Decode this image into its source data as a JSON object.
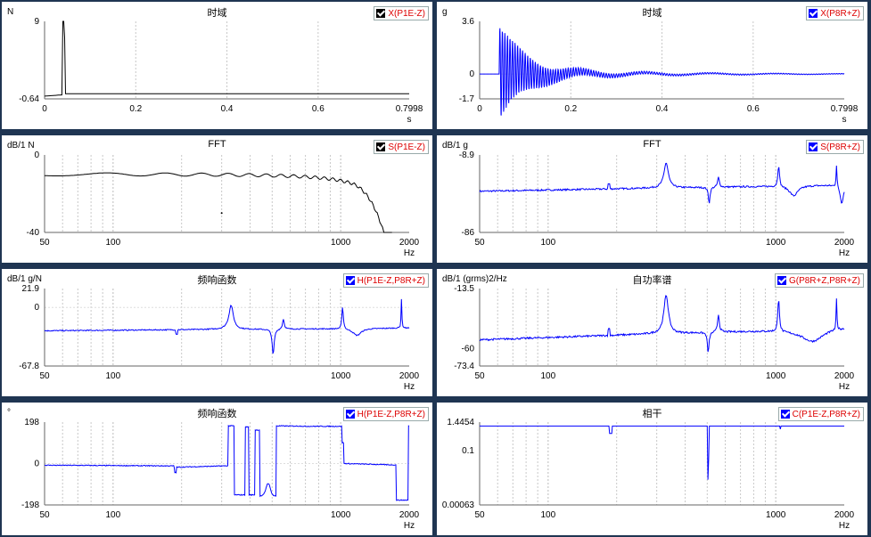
{
  "panels": [
    {
      "id": "p1",
      "title": "时域",
      "unit": "N",
      "legend": "X(P1E-Z)",
      "legend_color": "#000000",
      "color": "#000000",
      "xscale": "lin",
      "xmin": 0,
      "xmax": 0.7998,
      "xticks": [
        "0",
        "0.2",
        "0.4",
        "0.6",
        "0.7998"
      ],
      "xunit": "s",
      "yticks": [
        "9",
        "-0.64"
      ],
      "ymin": -0.64,
      "ymax": 9,
      "trace": "impulse"
    },
    {
      "id": "p2",
      "title": "时域",
      "unit": "g",
      "legend": "X(P8R+Z)",
      "legend_color": "#0000ff",
      "color": "#0000ff",
      "xscale": "lin",
      "xmin": 0,
      "xmax": 0.7998,
      "xticks": [
        "0",
        "0.2",
        "0.4",
        "0.6",
        "0.7998"
      ],
      "xunit": "s",
      "yticks": [
        "3.6",
        "0",
        "-1.7"
      ],
      "ymin": -1.7,
      "ymax": 3.6,
      "trace": "decay"
    },
    {
      "id": "p3",
      "title": "FFT",
      "unit": "dB/1 N",
      "legend": "S(P1E-Z)",
      "legend_color": "#000000",
      "color": "#000000",
      "xscale": "log",
      "xmin": 50,
      "xmax": 2000,
      "xticks": [
        "50",
        "100",
        "1000",
        "2000"
      ],
      "xunit": "Hz",
      "yticks": [
        "0",
        "-40"
      ],
      "ymin": -40,
      "ymax": 0,
      "trace": "fftforce"
    },
    {
      "id": "p4",
      "title": "FFT",
      "unit": "dB/1 g",
      "legend": "S(P8R+Z)",
      "legend_color": "#0000ff",
      "color": "#0000ff",
      "xscale": "log",
      "xmin": 50,
      "xmax": 2000,
      "xticks": [
        "50",
        "100",
        "1000",
        "2000"
      ],
      "xunit": "Hz",
      "yticks": [
        "-8.9",
        "-86"
      ],
      "ymin": -86,
      "ymax": -8.9,
      "trace": "resp"
    },
    {
      "id": "p5",
      "title": "频响函数",
      "unit": "dB/1 g/N",
      "legend": "H(P1E-Z,P8R+Z)",
      "legend_color": "#0000ff",
      "color": "#0000ff",
      "xscale": "log",
      "xmin": 50,
      "xmax": 2000,
      "xticks": [
        "50",
        "100",
        "1000",
        "2000"
      ],
      "xunit": "Hz",
      "yticks": [
        "21.9",
        "0",
        "-67.8"
      ],
      "ymin": -67.8,
      "ymax": 21.9,
      "trace": "frf"
    },
    {
      "id": "p6",
      "title": "自功率谱",
      "unit": "dB/1 (grms)2/Hz",
      "legend": "G(P8R+Z,P8R+Z)",
      "legend_color": "#0000ff",
      "color": "#0000ff",
      "xscale": "log",
      "xmin": 50,
      "xmax": 2000,
      "xticks": [
        "50",
        "100",
        "1000",
        "2000"
      ],
      "xunit": "Hz",
      "yticks": [
        "-13.5",
        "-60",
        "-73.4"
      ],
      "ymin": -73.4,
      "ymax": -13.5,
      "trace": "psd"
    },
    {
      "id": "p7",
      "title": "频响函数",
      "unit": "°",
      "legend": "H(P1E-Z,P8R+Z)",
      "legend_color": "#0000ff",
      "color": "#0000ff",
      "xscale": "log",
      "xmin": 50,
      "xmax": 2000,
      "xticks": [
        "50",
        "100",
        "1000",
        "2000"
      ],
      "xunit": "Hz",
      "yticks": [
        "198",
        "0",
        "-198"
      ],
      "ymin": -198,
      "ymax": 198,
      "trace": "phase"
    },
    {
      "id": "p8",
      "title": "相干",
      "unit": "",
      "legend": "C(P1E-Z,P8R+Z)",
      "legend_color": "#0000ff",
      "color": "#0000ff",
      "xscale": "log",
      "xmin": 50,
      "xmax": 2000,
      "xticks": [
        "50",
        "100",
        "1000",
        "2000"
      ],
      "xunit": "Hz",
      "yticks": [
        "1.4454",
        "0.1",
        "0.00063"
      ],
      "ymin": 0.00063,
      "ymax": 1.4454,
      "trace": "coh"
    }
  ]
}
